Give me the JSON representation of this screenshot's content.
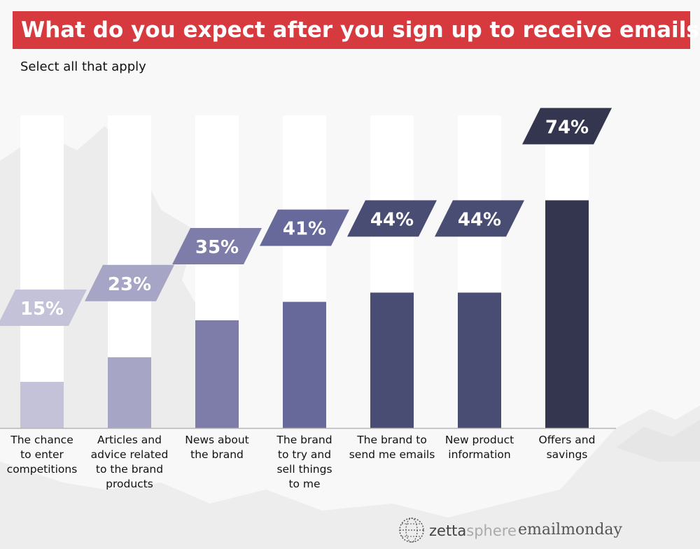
{
  "chart_data": {
    "type": "bar",
    "title": "What do you expect after you sign up to receive emails ?",
    "subtitle": "Select all that apply",
    "categories": [
      "The chance to enter competitions",
      "Articles and advice related to the brand products",
      "News about the brand",
      "The brand to try and sell things to me",
      "The brand to send me emails",
      "New product information",
      "Offers and savings"
    ],
    "category_lines": [
      [
        "The chance",
        "to enter",
        "competitions"
      ],
      [
        "Articles and",
        "advice related",
        "to the brand",
        "products"
      ],
      [
        "News about",
        "the brand"
      ],
      [
        "The brand",
        "to try and",
        "sell things",
        "to me"
      ],
      [
        "The brand to",
        "send me emails"
      ],
      [
        "New product",
        "information"
      ],
      [
        "Offers and",
        "savings"
      ]
    ],
    "values": [
      15,
      23,
      35,
      41,
      44,
      44,
      74
    ],
    "data_labels": [
      "15%",
      "23%",
      "35%",
      "41%",
      "44%",
      "44%",
      "74%"
    ],
    "ylim": [
      0,
      100
    ],
    "grid": false,
    "legend": "none",
    "colors": [
      "#c3c2d8",
      "#a6a5c5",
      "#7e7daa",
      "#666999",
      "#4a4d73",
      "#4a4d73",
      "#34364f"
    ],
    "track_color": "#ffffff"
  },
  "logos": {
    "zetta": "zetta",
    "sphere": "sphere",
    "emailmonday": "emailmonday",
    "icon": "globe-icon"
  }
}
